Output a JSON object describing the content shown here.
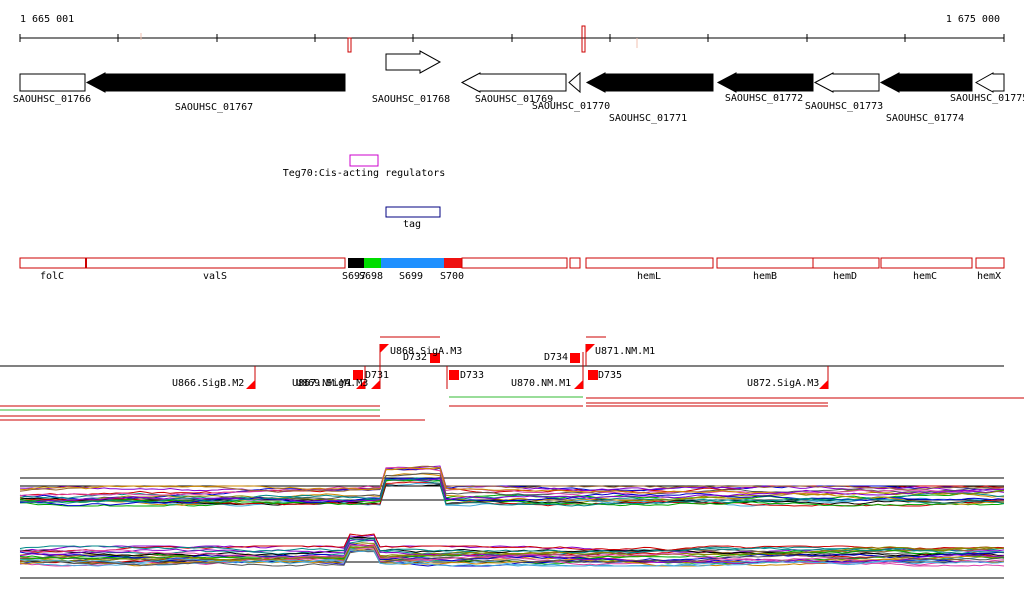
{
  "ruler": {
    "start_label": "1 665 001",
    "end_label": "1 675 000"
  },
  "genes": [
    {
      "label": "SAOUHSC_01766",
      "strand": "+",
      "filled": false
    },
    {
      "label": "SAOUHSC_01767",
      "strand": "-",
      "filled": true
    },
    {
      "label": "SAOUHSC_01768",
      "strand": "+",
      "filled": false
    },
    {
      "label": "SAOUHSC_01769",
      "strand": "-",
      "filled": false
    },
    {
      "label": "SAOUHSC_01770",
      "strand": "-",
      "filled": false
    },
    {
      "label": "SAOUHSC_01771",
      "strand": "-",
      "filled": true
    },
    {
      "label": "SAOUHSC_01772",
      "strand": "-",
      "filled": true
    },
    {
      "label": "SAOUHSC_01773",
      "strand": "-",
      "filled": false
    },
    {
      "label": "SAOUHSC_01774",
      "strand": "-",
      "filled": true
    },
    {
      "label": "SAOUHSC_01775",
      "strand": "-",
      "filled": false
    }
  ],
  "regulator": {
    "label": "Teg70:Cis-acting regulators",
    "color": "#cc00cc"
  },
  "tag": {
    "label": "tag",
    "color": "#000080"
  },
  "operons": [
    {
      "label": "folC"
    },
    {
      "label": "valS"
    },
    {
      "label": "S697"
    },
    {
      "label": "S698"
    },
    {
      "label": "S699"
    },
    {
      "label": "S700"
    },
    {
      "label": "hemL"
    },
    {
      "label": "hemB"
    },
    {
      "label": "hemD"
    },
    {
      "label": "hemC"
    },
    {
      "label": "hemX"
    }
  ],
  "segment_colors": {
    "black": "#000000",
    "green": "#00dd00",
    "blue": "#1e90ff",
    "red": "#ee1111"
  },
  "transcripts": [
    {
      "label": "U866.SigB.M2"
    },
    {
      "label": "U867.NM.M1"
    },
    {
      "label": "U869.SigA.M3"
    },
    {
      "label": "U868.SigA.M3"
    },
    {
      "label": "U870.NM.M1"
    },
    {
      "label": "U871.NM.M1"
    },
    {
      "label": "U872.SigA.M3"
    }
  ],
  "markers": [
    {
      "label": "D731"
    },
    {
      "label": "D732"
    },
    {
      "label": "D733"
    },
    {
      "label": "D734"
    },
    {
      "label": "D735"
    }
  ],
  "colors": {
    "outline_red": "#cc0000",
    "marker_red": "#ff0000",
    "green_line": "#33bb33"
  }
}
